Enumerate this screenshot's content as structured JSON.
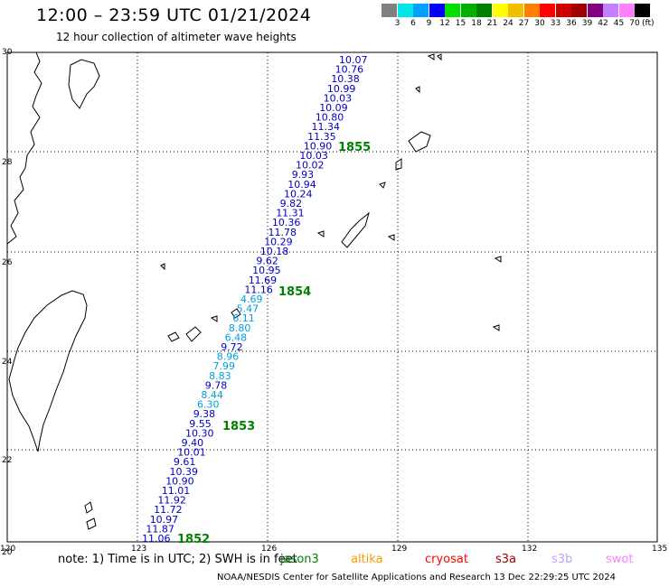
{
  "header": {
    "title": "12:00 – 23:59 UTC 01/21/2024",
    "subtitle": "12 hour collection of altimeter wave heights"
  },
  "color_scale": {
    "labels": [
      "3",
      "6",
      "9",
      "12",
      "15",
      "18",
      "21",
      "24",
      "27",
      "30",
      "33",
      "36",
      "39",
      "42",
      "45",
      "70"
    ],
    "unit": "(ft)",
    "colors": [
      "#808080",
      "#00e5e5",
      "#00a0ff",
      "#0000ff",
      "#00e000",
      "#00b000",
      "#008000",
      "#ffff00",
      "#f0c000",
      "#ff8000",
      "#ff0000",
      "#d00000",
      "#a00000",
      "#800080",
      "#c080ff",
      "#ff80ff",
      "#000000"
    ]
  },
  "axes": {
    "lon_labels": [
      "120",
      "123",
      "126",
      "129",
      "132",
      "135"
    ],
    "lat_labels": [
      "30",
      "28",
      "26",
      "24",
      "22",
      "20"
    ]
  },
  "track": {
    "values": [
      "10.07",
      "10.76",
      "10.38",
      "10.99",
      "10.03",
      "10.09",
      "10.80",
      "11.34",
      "11.35",
      "10.90",
      "10.03",
      "10.02",
      "9.93",
      "10.94",
      "10.24",
      "9.82",
      "11.31",
      "10.36",
      "11.78",
      "10.29",
      "10.18",
      "9.62",
      "10.95",
      "11.69",
      "11.16",
      "4.69",
      "5.47",
      "6.11",
      "8.80",
      "6.48",
      "9.72",
      "8.96",
      "7.99",
      "8.83",
      "9.78",
      "8.44",
      "6.30",
      "9.38",
      "9.55",
      "10.30",
      "9.40",
      "10.01",
      "9.61",
      "10.39",
      "10.90",
      "11.01",
      "11.92",
      "11.72",
      "10.97",
      "11.87",
      "11.06"
    ],
    "colors": [
      "#0000c0",
      "#0000c0",
      "#0000c0",
      "#0000c0",
      "#0000c0",
      "#0000c0",
      "#0000c0",
      "#0000c0",
      "#0000c0",
      "#0000c0",
      "#0000c0",
      "#0000c0",
      "#0000c0",
      "#0000c0",
      "#0000c0",
      "#0000c0",
      "#0000c0",
      "#0000c0",
      "#0000c0",
      "#0000c0",
      "#0000c0",
      "#0000c0",
      "#0000c0",
      "#0000c0",
      "#0000c0",
      "#00a0e0",
      "#00a0e0",
      "#00a0e0",
      "#00a0e0",
      "#00a0e0",
      "#0000c0",
      "#00a0e0",
      "#00a0e0",
      "#00a0e0",
      "#0000c0",
      "#00a0e0",
      "#00a0e0",
      "#0000c0",
      "#0000c0",
      "#0000c0",
      "#0000c0",
      "#0000c0",
      "#0000c0",
      "#0000c0",
      "#0000c0",
      "#0000c0",
      "#0000c0",
      "#0000c0",
      "#0000c0",
      "#0000c0",
      "#0000c0"
    ],
    "time_labels": [
      "1855",
      "1854",
      "1853",
      "1852"
    ]
  },
  "note": {
    "prefix": "note:  1) Time is in UTC;  2) SWH is in feet",
    "satellites": [
      {
        "name": "jason3",
        "color": "#008000"
      },
      {
        "name": "altika",
        "color": "#ff9900"
      },
      {
        "name": "cryosat",
        "color": "#ff0000"
      },
      {
        "name": "s3a",
        "color": "#a00000"
      },
      {
        "name": "s3b",
        "color": "#c0a0ff"
      },
      {
        "name": "swot",
        "color": "#ff80ff"
      }
    ]
  },
  "footer": "NOAA/NESDIS Center for Satellite Applications and Research     13 Dec 22:29:25 UTC 2024"
}
